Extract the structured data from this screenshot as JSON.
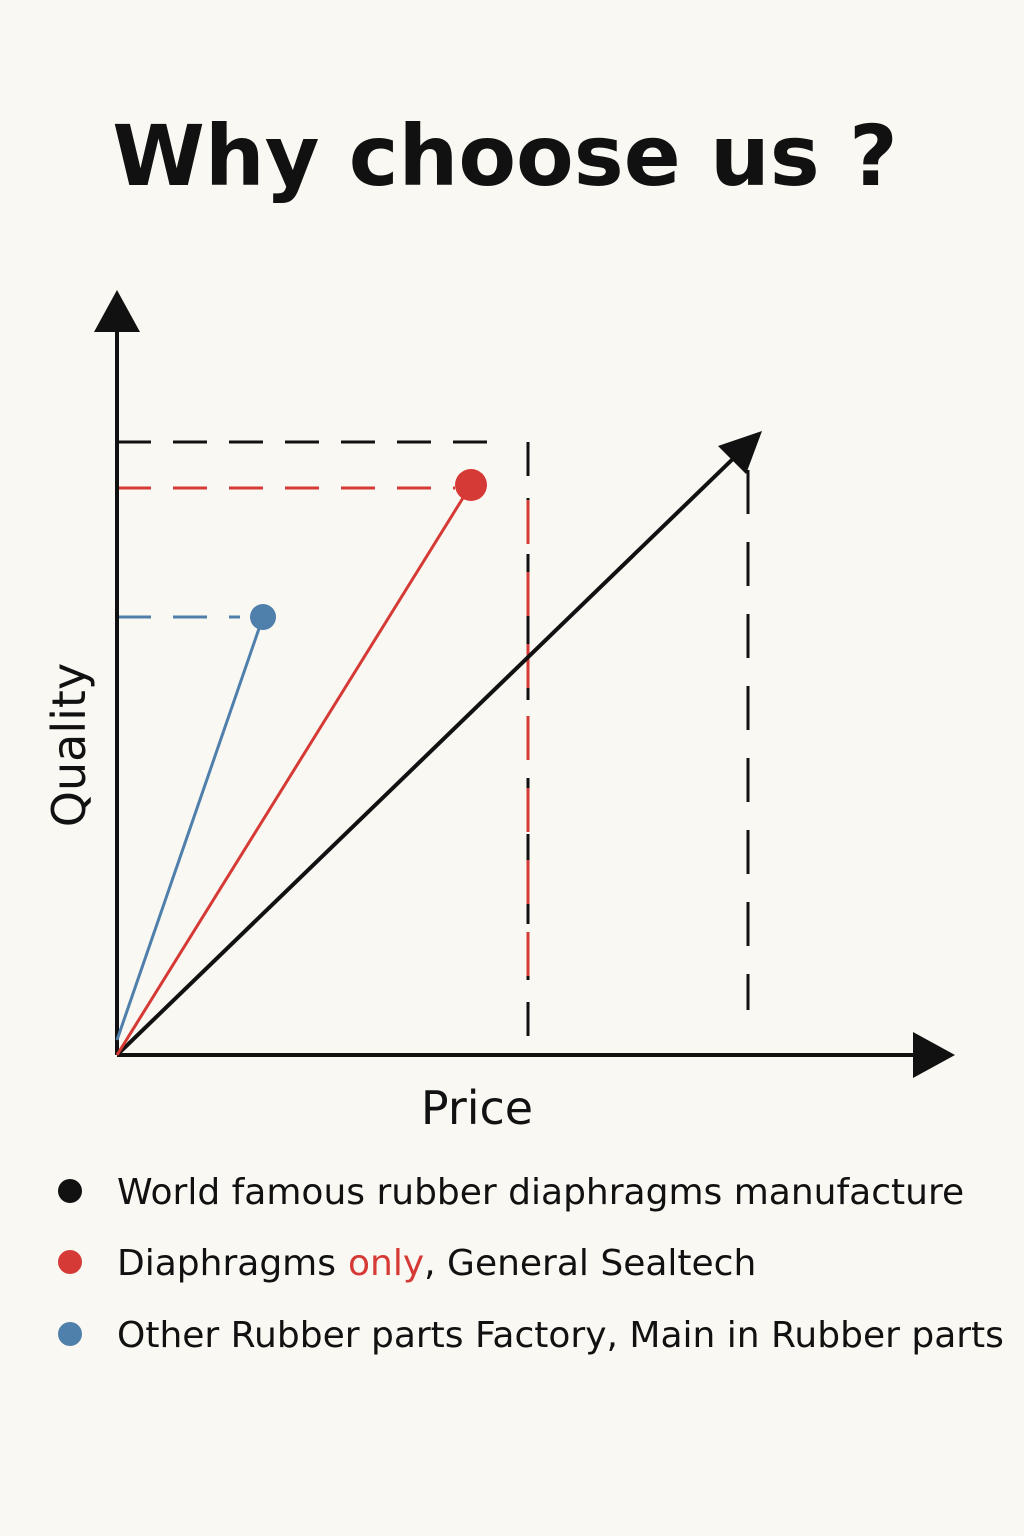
{
  "title": "Why choose us ?",
  "axes": {
    "y_label": "Quality",
    "x_label": "Price"
  },
  "legend": [
    {
      "text": "World famous rubber diaphragms manufacture"
    },
    {
      "parts": [
        "Diaphragms",
        "only",
        ", General Sealtech"
      ]
    },
    {
      "text": "Other Rubber parts Factory, Main in Rubber parts"
    }
  ]
}
